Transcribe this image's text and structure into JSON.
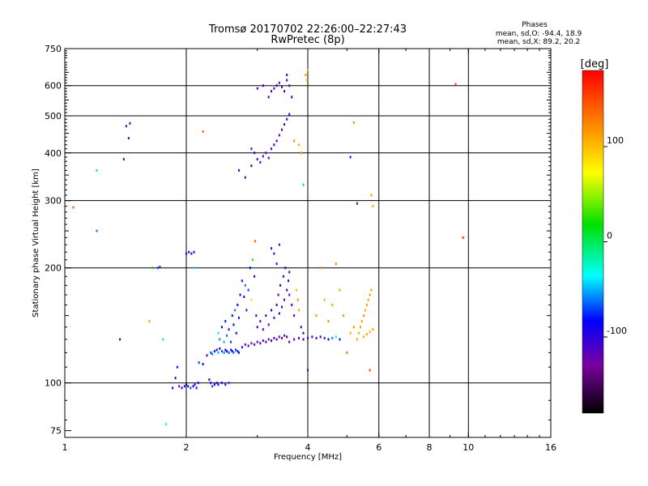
{
  "header": {
    "title": "Tromsø 20170702 22:26:00–22:27:43",
    "subtitle": "RwPretec (8p)",
    "phases_title": "Phases",
    "stat_o": "mean, sd,O: -94.4, 18.9",
    "stat_x": "mean, sd,X:  89.2, 20.2"
  },
  "colorbar": {
    "unit_label": "[deg]",
    "ticks": [
      {
        "value": 100,
        "label": "100"
      },
      {
        "value": 0,
        "label": "0"
      },
      {
        "value": -100,
        "label": "-100"
      }
    ],
    "range": [
      -180,
      180
    ]
  },
  "chart_data": {
    "type": "scatter",
    "xlabel": "Frequency [MHz]",
    "ylabel": "Stationary phase Virtual Height [km]",
    "xscale": "log",
    "yscale": "log",
    "xlim": [
      1,
      16
    ],
    "ylim": [
      72,
      750
    ],
    "x_ticks": [
      {
        "value": 1,
        "label": "1"
      },
      {
        "value": 2,
        "label": "2"
      },
      {
        "value": 4,
        "label": "4"
      },
      {
        "value": 6,
        "label": "6"
      },
      {
        "value": 8,
        "label": "8"
      },
      {
        "value": 10,
        "label": "10"
      },
      {
        "value": 16,
        "label": "16"
      }
    ],
    "y_ticks": [
      {
        "value": 75,
        "label": "75"
      },
      {
        "value": 100,
        "label": "100"
      },
      {
        "value": 200,
        "label": "200"
      },
      {
        "value": 300,
        "label": "300"
      },
      {
        "value": 400,
        "label": "400"
      },
      {
        "value": 500,
        "label": "500"
      },
      {
        "value": 600,
        "label": "600"
      },
      {
        "value": 750,
        "label": "750"
      }
    ],
    "grid_x": [
      2,
      4,
      6,
      8,
      10
    ],
    "grid_y": [
      100,
      200,
      300,
      400,
      500,
      600
    ],
    "grid": true,
    "color_encoding": "phase_deg",
    "points": [
      [
        1.05,
        288,
        140
      ],
      [
        1.2,
        360,
        -10
      ],
      [
        1.2,
        250,
        -60
      ],
      [
        1.37,
        130,
        -110
      ],
      [
        1.4,
        385,
        -115
      ],
      [
        1.42,
        470,
        -120
      ],
      [
        1.44,
        437,
        -120
      ],
      [
        1.45,
        478,
        -110
      ],
      [
        1.62,
        145,
        110
      ],
      [
        1.65,
        200,
        20
      ],
      [
        1.7,
        200,
        -70
      ],
      [
        1.72,
        201,
        -100
      ],
      [
        1.75,
        130,
        -40
      ],
      [
        1.78,
        78,
        -30
      ],
      [
        1.85,
        97,
        -90
      ],
      [
        1.88,
        103,
        -100
      ],
      [
        1.9,
        110,
        -80
      ],
      [
        1.92,
        98,
        -120
      ],
      [
        1.95,
        97,
        -100
      ],
      [
        1.98,
        98,
        -90
      ],
      [
        2.0,
        99,
        -95
      ],
      [
        2.02,
        98,
        -100
      ],
      [
        2.05,
        97,
        -70
      ],
      [
        2.08,
        98,
        -90
      ],
      [
        2.1,
        99,
        -110
      ],
      [
        2.12,
        97,
        -100
      ],
      [
        2.14,
        100,
        -90
      ],
      [
        2.2,
        455,
        140
      ],
      [
        2.0,
        218,
        -110
      ],
      [
        2.03,
        220,
        -100
      ],
      [
        2.06,
        218,
        -110
      ],
      [
        2.09,
        220,
        -100
      ],
      [
        2.1,
        200,
        -40
      ],
      [
        2.15,
        113,
        -70
      ],
      [
        2.2,
        112,
        -80
      ],
      [
        2.25,
        118,
        -110
      ],
      [
        2.28,
        102,
        -80
      ],
      [
        2.3,
        100,
        -100
      ],
      [
        2.32,
        98,
        -70
      ],
      [
        2.35,
        99,
        -90
      ],
      [
        2.38,
        100,
        -100
      ],
      [
        2.4,
        99,
        -80
      ],
      [
        2.45,
        100,
        -90
      ],
      [
        2.5,
        99,
        -100
      ],
      [
        2.55,
        100,
        -70
      ],
      [
        2.3,
        120,
        -70
      ],
      [
        2.32,
        119,
        -60
      ],
      [
        2.35,
        121,
        -80
      ],
      [
        2.38,
        122,
        -90
      ],
      [
        2.4,
        120,
        -50
      ],
      [
        2.42,
        123,
        -100
      ],
      [
        2.45,
        121,
        -70
      ],
      [
        2.48,
        120,
        -60
      ],
      [
        2.5,
        122,
        -80
      ],
      [
        2.52,
        121,
        -90
      ],
      [
        2.55,
        120,
        -70
      ],
      [
        2.58,
        122,
        -100
      ],
      [
        2.6,
        121,
        -85
      ],
      [
        2.62,
        120,
        -60
      ],
      [
        2.65,
        122,
        -75
      ],
      [
        2.68,
        121,
        -90
      ],
      [
        2.7,
        120,
        -100
      ],
      [
        2.4,
        135,
        -40
      ],
      [
        2.42,
        130,
        -60
      ],
      [
        2.45,
        140,
        -90
      ],
      [
        2.48,
        128,
        -50
      ],
      [
        2.5,
        145,
        -80
      ],
      [
        2.52,
        133,
        -60
      ],
      [
        2.55,
        138,
        -100
      ],
      [
        2.58,
        128,
        -70
      ],
      [
        2.6,
        150,
        -90
      ],
      [
        2.62,
        142,
        -80
      ],
      [
        2.64,
        155,
        -60
      ],
      [
        2.66,
        135,
        -100
      ],
      [
        2.68,
        160,
        -90
      ],
      [
        2.7,
        148,
        -110
      ],
      [
        2.72,
        170,
        -90
      ],
      [
        2.75,
        185,
        -100
      ],
      [
        2.78,
        168,
        -80
      ],
      [
        2.8,
        180,
        -60
      ],
      [
        2.82,
        155,
        -110
      ],
      [
        2.85,
        175,
        -70
      ],
      [
        2.88,
        200,
        -90
      ],
      [
        2.9,
        165,
        60
      ],
      [
        2.92,
        210,
        30
      ],
      [
        2.95,
        190,
        -100
      ],
      [
        2.98,
        150,
        -80
      ],
      [
        2.96,
        235,
        140
      ],
      [
        2.75,
        124,
        -120
      ],
      [
        2.8,
        126,
        -110
      ],
      [
        2.85,
        125,
        -100
      ],
      [
        2.9,
        127,
        -130
      ],
      [
        2.95,
        126,
        -120
      ],
      [
        3.0,
        128,
        -110
      ],
      [
        3.05,
        127,
        -140
      ],
      [
        3.1,
        129,
        -120
      ],
      [
        3.15,
        128,
        -110
      ],
      [
        3.2,
        130,
        -120
      ],
      [
        3.25,
        129,
        -140
      ],
      [
        3.3,
        131,
        -110
      ],
      [
        3.35,
        130,
        -120
      ],
      [
        3.4,
        132,
        -130
      ],
      [
        3.45,
        131,
        -110
      ],
      [
        3.5,
        133,
        -120
      ],
      [
        3.55,
        132,
        -140
      ],
      [
        3.0,
        140,
        -100
      ],
      [
        3.05,
        145,
        -110
      ],
      [
        3.1,
        138,
        -120
      ],
      [
        3.15,
        150,
        -100
      ],
      [
        3.2,
        142,
        -110
      ],
      [
        3.25,
        155,
        -90
      ],
      [
        3.3,
        148,
        -120
      ],
      [
        3.35,
        160,
        -100
      ],
      [
        3.38,
        170,
        -110
      ],
      [
        3.4,
        152,
        -90
      ],
      [
        3.42,
        180,
        -100
      ],
      [
        3.45,
        158,
        -110
      ],
      [
        3.48,
        190,
        -100
      ],
      [
        3.5,
        165,
        -120
      ],
      [
        3.52,
        200,
        -100
      ],
      [
        3.55,
        175,
        -110
      ],
      [
        3.58,
        185,
        -100
      ],
      [
        3.6,
        195,
        -110
      ],
      [
        3.25,
        225,
        -100
      ],
      [
        3.3,
        218,
        -110
      ],
      [
        3.35,
        205,
        -100
      ],
      [
        3.4,
        230,
        -110
      ],
      [
        3.6,
        170,
        -120
      ],
      [
        3.65,
        160,
        -110
      ],
      [
        3.7,
        150,
        -100
      ],
      [
        3.75,
        175,
        100
      ],
      [
        3.78,
        165,
        120
      ],
      [
        3.8,
        155,
        110
      ],
      [
        3.85,
        140,
        -100
      ],
      [
        3.9,
        135,
        -110
      ],
      [
        3.6,
        128,
        -110
      ],
      [
        3.7,
        130,
        -120
      ],
      [
        3.8,
        131,
        -110
      ],
      [
        3.9,
        130,
        -100
      ],
      [
        4.0,
        131,
        -110
      ],
      [
        4.1,
        132,
        -100
      ],
      [
        4.2,
        131,
        -110
      ],
      [
        4.3,
        132,
        -100
      ],
      [
        4.4,
        131,
        -110
      ],
      [
        4.5,
        130,
        -90
      ],
      [
        4.6,
        131,
        -60
      ],
      [
        4.7,
        132,
        -40
      ],
      [
        4.8,
        130,
        -80
      ],
      [
        4.0,
        108,
        -110
      ],
      [
        4.2,
        150,
        120
      ],
      [
        4.3,
        200,
        120
      ],
      [
        4.4,
        165,
        110
      ],
      [
        4.5,
        145,
        120
      ],
      [
        4.6,
        160,
        115
      ],
      [
        4.7,
        205,
        120
      ],
      [
        4.8,
        175,
        110
      ],
      [
        4.9,
        150,
        120
      ],
      [
        5.0,
        120,
        130
      ],
      [
        5.1,
        135,
        110
      ],
      [
        5.2,
        140,
        120
      ],
      [
        5.3,
        130,
        110
      ],
      [
        5.35,
        135,
        110
      ],
      [
        5.4,
        140,
        115
      ],
      [
        5.45,
        145,
        110
      ],
      [
        5.5,
        150,
        120
      ],
      [
        5.55,
        155,
        110
      ],
      [
        5.6,
        160,
        115
      ],
      [
        5.65,
        165,
        110
      ],
      [
        5.7,
        170,
        120
      ],
      [
        5.75,
        175,
        110
      ],
      [
        5.5,
        132,
        110
      ],
      [
        5.6,
        134,
        110
      ],
      [
        5.7,
        136,
        110
      ],
      [
        5.8,
        138,
        110
      ],
      [
        5.7,
        108,
        150
      ],
      [
        5.75,
        310,
        120
      ],
      [
        5.8,
        290,
        110
      ],
      [
        5.3,
        295,
        -110
      ],
      [
        5.1,
        390,
        -110
      ],
      [
        5.2,
        480,
        120
      ],
      [
        9.3,
        605,
        150
      ],
      [
        9.7,
        240,
        160
      ],
      [
        2.7,
        360,
        -110
      ],
      [
        2.8,
        345,
        -120
      ],
      [
        2.9,
        370,
        -100
      ],
      [
        3.0,
        385,
        -110
      ],
      [
        3.05,
        378,
        -120
      ],
      [
        3.1,
        392,
        -110
      ],
      [
        3.15,
        400,
        -100
      ],
      [
        3.2,
        388,
        -110
      ],
      [
        3.25,
        410,
        -120
      ],
      [
        3.3,
        420,
        -110
      ],
      [
        3.35,
        430,
        -100
      ],
      [
        3.4,
        445,
        -110
      ],
      [
        3.45,
        460,
        -120
      ],
      [
        3.5,
        475,
        -110
      ],
      [
        3.55,
        490,
        -100
      ],
      [
        3.6,
        505,
        -110
      ],
      [
        3.2,
        560,
        -110
      ],
      [
        3.25,
        580,
        -120
      ],
      [
        3.3,
        590,
        -110
      ],
      [
        3.35,
        600,
        -100
      ],
      [
        3.4,
        610,
        -120
      ],
      [
        3.45,
        595,
        -110
      ],
      [
        3.5,
        580,
        -100
      ],
      [
        3.55,
        620,
        -110
      ],
      [
        3.6,
        600,
        -120
      ],
      [
        3.65,
        560,
        -100
      ],
      [
        3.55,
        640,
        -110
      ],
      [
        3.1,
        600,
        -100
      ],
      [
        3.0,
        590,
        -110
      ],
      [
        3.7,
        430,
        120
      ],
      [
        3.8,
        420,
        110
      ],
      [
        3.85,
        400,
        120
      ],
      [
        3.9,
        330,
        0
      ],
      [
        3.95,
        640,
        120
      ],
      [
        4.0,
        660,
        110
      ],
      [
        3.98,
        620,
        110
      ],
      [
        2.9,
        410,
        -110
      ],
      [
        2.95,
        400,
        -100
      ]
    ]
  }
}
